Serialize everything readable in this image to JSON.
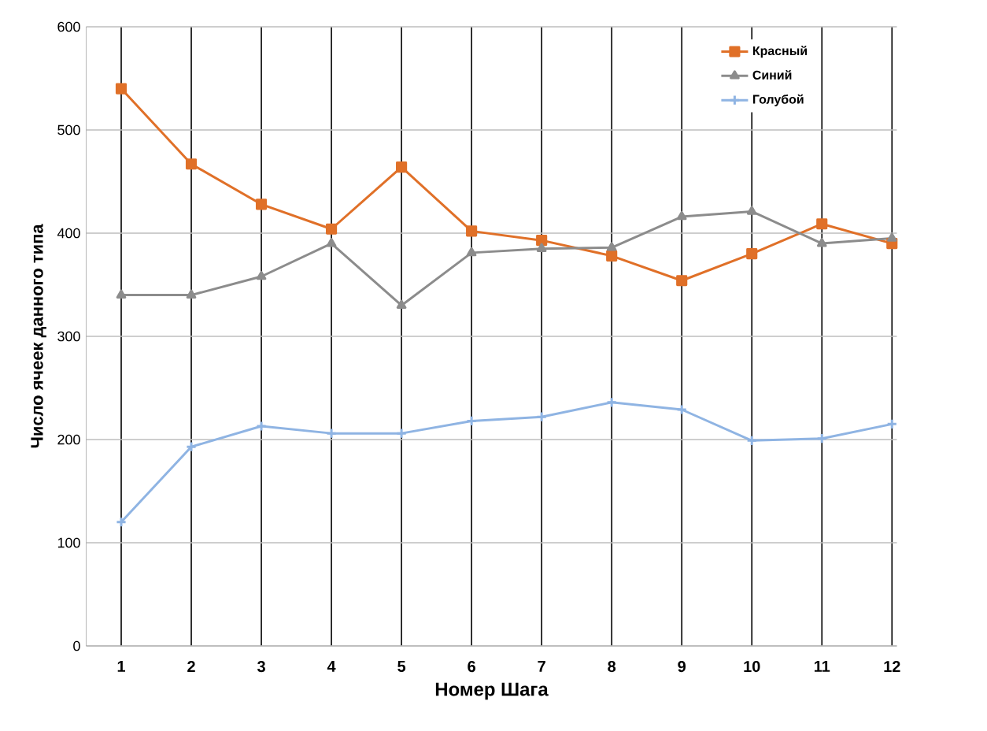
{
  "chart_data": {
    "type": "line",
    "xlabel": "Номер Шага",
    "ylabel": "Число ячеек данного типа",
    "categories": [
      "1",
      "2",
      "3",
      "4",
      "5",
      "6",
      "7",
      "8",
      "9",
      "10",
      "11",
      "12"
    ],
    "series": [
      {
        "name": "Красный",
        "color": "#e07028",
        "marker": "square",
        "values": [
          540,
          467,
          428,
          404,
          464,
          402,
          393,
          378,
          354,
          380,
          409,
          390
        ]
      },
      {
        "name": "Синий",
        "color": "#8c8c8c",
        "marker": "triangle",
        "values": [
          340,
          340,
          358,
          390,
          330,
          381,
          385,
          386,
          416,
          421,
          390,
          395
        ]
      },
      {
        "name": "Голубой",
        "color": "#8fb4e3",
        "marker": "cross",
        "values": [
          120,
          193,
          213,
          206,
          206,
          218,
          222,
          236,
          229,
          199,
          201,
          215
        ]
      }
    ],
    "ylim": [
      0,
      600
    ],
    "yticks": [
      0,
      100,
      200,
      300,
      400,
      500,
      600
    ],
    "grid": true,
    "legend": "top right",
    "line_style": "solid"
  }
}
